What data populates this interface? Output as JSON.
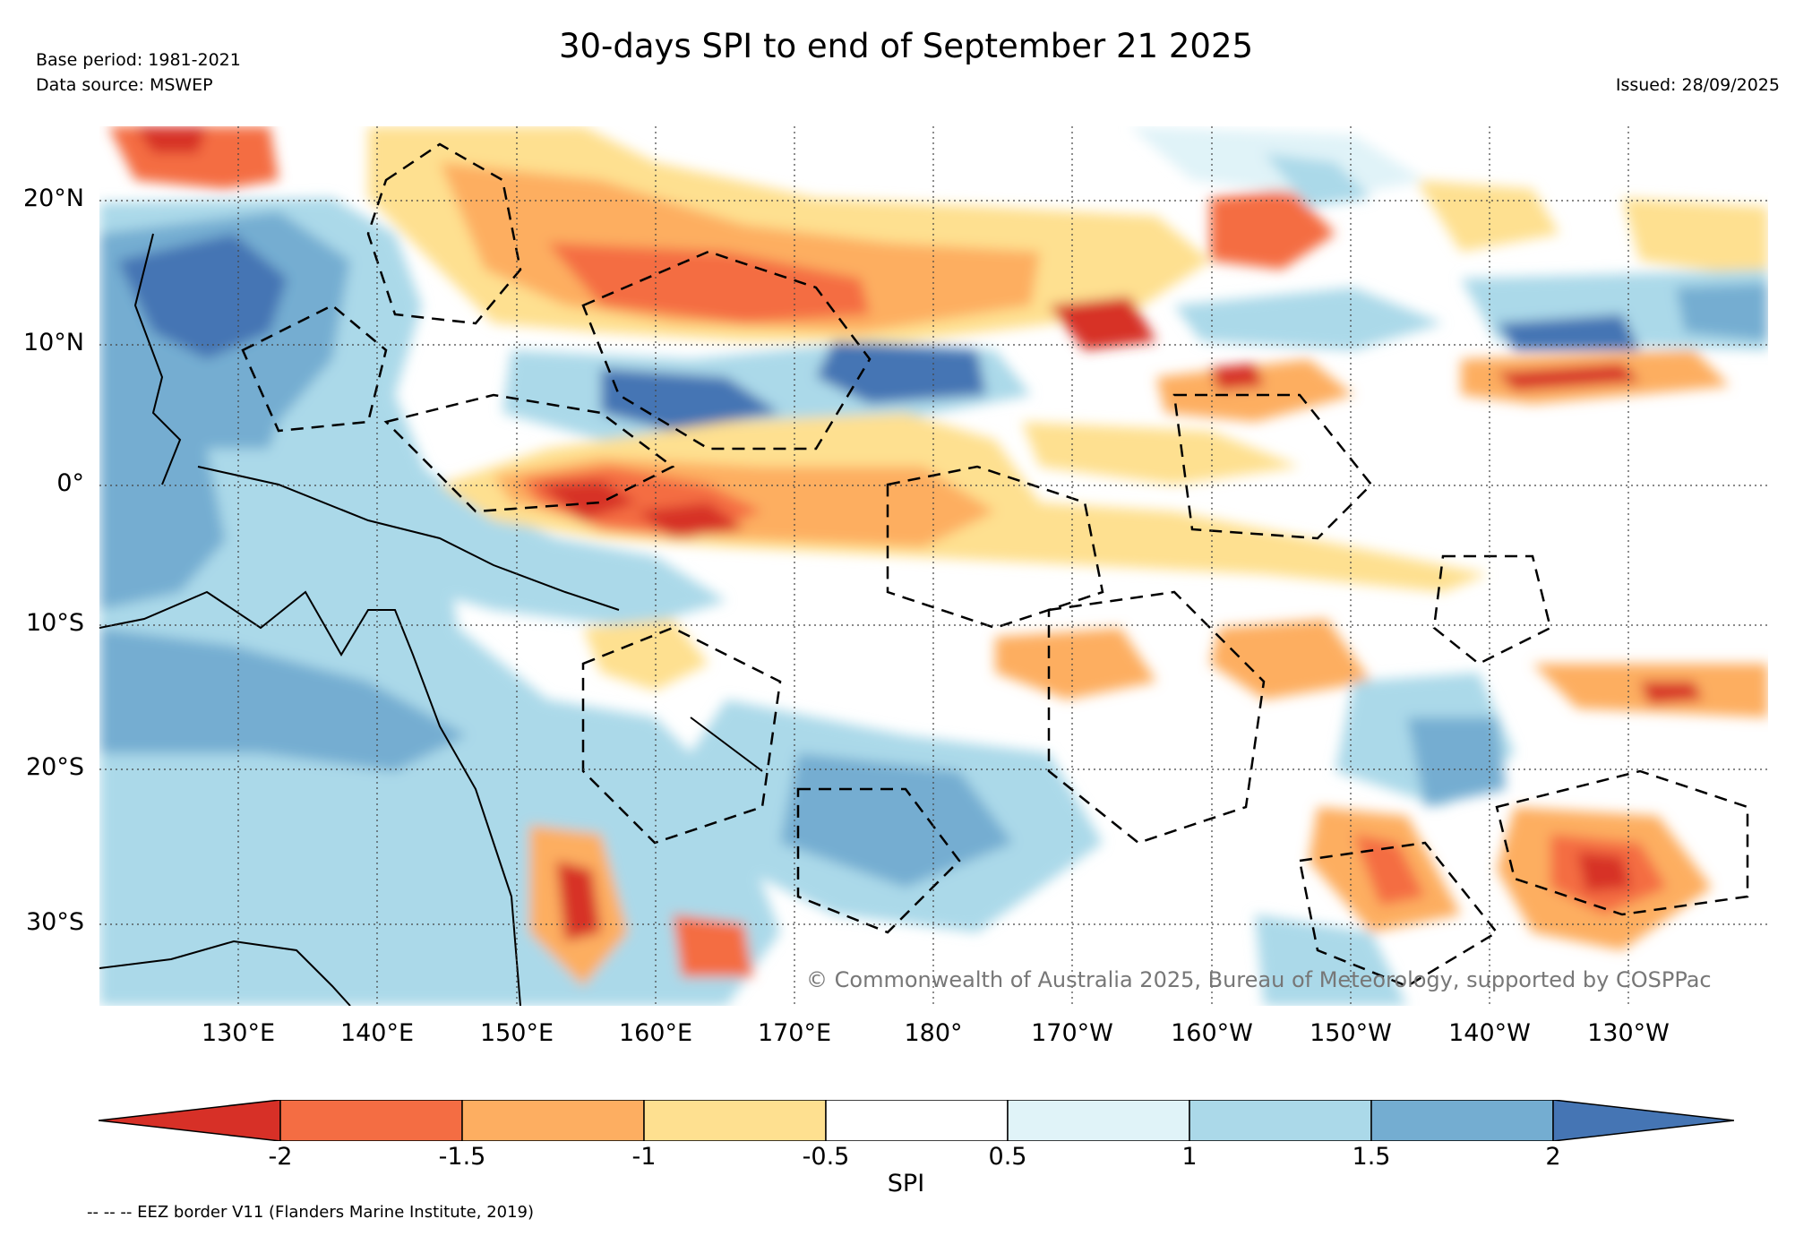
{
  "header": {
    "title": "30-days SPI to end of September 21 2025",
    "base_period": "Base period: 1981-2021",
    "data_source": "Data source: MSWEP",
    "issued": "Issued: 28/09/2025"
  },
  "map": {
    "lat_labels": [
      "20°N",
      "10°N",
      "0°",
      "10°S",
      "20°S",
      "30°S"
    ],
    "lon_labels": [
      "130°E",
      "140°E",
      "150°E",
      "160°E",
      "170°E",
      "180°",
      "170°W",
      "160°W",
      "150°W",
      "140°W",
      "130°W"
    ],
    "copyright": "© Commonwealth of Australia 2025, Bureau of Meteorology, supported by COSPPac",
    "lon_range": [
      120,
      240
    ],
    "lat_range": [
      -36,
      25
    ]
  },
  "colorbar": {
    "label": "SPI",
    "ticks": [
      "-2",
      "-1.5",
      "-1",
      "-0.5",
      "0.5",
      "1",
      "1.5",
      "2"
    ],
    "colors": [
      "#d73027",
      "#f46d43",
      "#fdae61",
      "#fee090",
      "#ffffff",
      "#e0f3f8",
      "#abd9e9",
      "#74add1",
      "#4575b4"
    ]
  },
  "legend_note": "-- -- -- EEZ border V11 (Flanders Marine Institute, 2019)"
}
